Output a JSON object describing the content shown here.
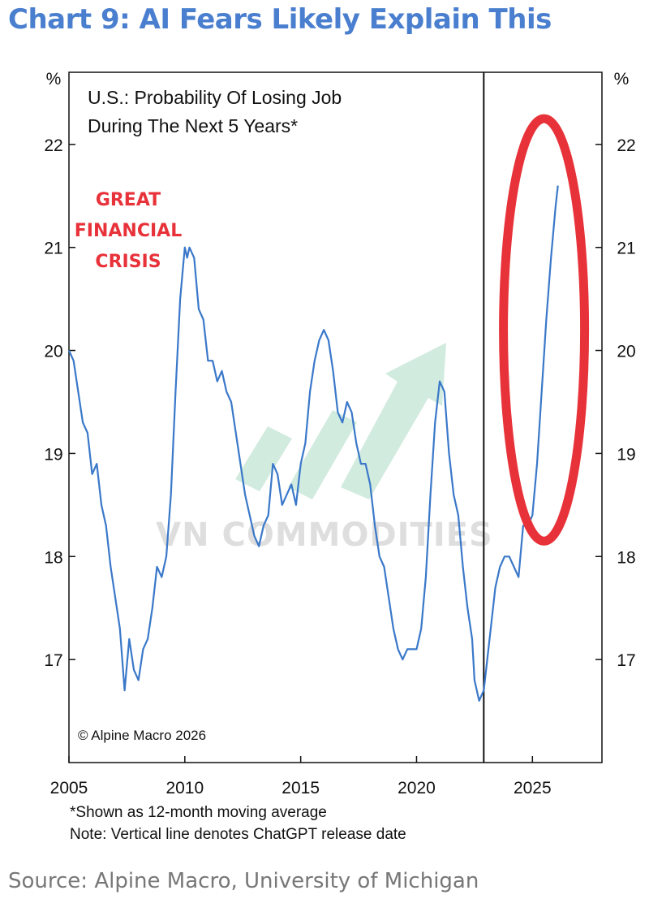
{
  "header": {
    "title": "Chart 9: AI Fears Likely Explain This"
  },
  "chart_data": {
    "type": "line",
    "title": "U.S.: Probability Of Losing Job",
    "subtitle": "During The Next 5 Years*",
    "ylabel_left": "%",
    "ylabel_right": "%",
    "xlim": [
      2005,
      2028
    ],
    "ylim": [
      16,
      22.7
    ],
    "x_ticks": [
      "2005",
      "2010",
      "2015",
      "2020",
      "2025"
    ],
    "y_ticks": [
      "17",
      "18",
      "19",
      "20",
      "21",
      "22"
    ],
    "vertical_line": {
      "x": 2022.9
    },
    "annotation": {
      "lines": [
        "GREAT",
        "FINANCIAL",
        "CRISIS"
      ],
      "color": "#e8323a"
    },
    "highlight_ellipse": {
      "cx": 2025.5,
      "cy": 20.2,
      "rx": 1.75,
      "ry": 2.05,
      "color": "#e8323a"
    },
    "copyright": "© Alpine Macro 2026",
    "watermark": "VN COMMODITIES",
    "series": [
      {
        "color": "#3a78c9",
        "points": [
          [
            2005.0,
            20.0
          ],
          [
            2005.2,
            19.9
          ],
          [
            2005.4,
            19.6
          ],
          [
            2005.6,
            19.3
          ],
          [
            2005.8,
            19.2
          ],
          [
            2006.0,
            18.8
          ],
          [
            2006.2,
            18.9
          ],
          [
            2006.4,
            18.5
          ],
          [
            2006.6,
            18.3
          ],
          [
            2006.8,
            17.9
          ],
          [
            2007.0,
            17.6
          ],
          [
            2007.2,
            17.3
          ],
          [
            2007.4,
            16.7
          ],
          [
            2007.6,
            17.2
          ],
          [
            2007.8,
            16.9
          ],
          [
            2008.0,
            16.8
          ],
          [
            2008.2,
            17.1
          ],
          [
            2008.4,
            17.2
          ],
          [
            2008.6,
            17.5
          ],
          [
            2008.8,
            17.9
          ],
          [
            2009.0,
            17.8
          ],
          [
            2009.2,
            18.0
          ],
          [
            2009.4,
            18.6
          ],
          [
            2009.6,
            19.6
          ],
          [
            2009.8,
            20.5
          ],
          [
            2010.0,
            21.0
          ],
          [
            2010.1,
            20.9
          ],
          [
            2010.2,
            21.0
          ],
          [
            2010.4,
            20.9
          ],
          [
            2010.6,
            20.4
          ],
          [
            2010.8,
            20.3
          ],
          [
            2011.0,
            19.9
          ],
          [
            2011.2,
            19.9
          ],
          [
            2011.4,
            19.7
          ],
          [
            2011.6,
            19.8
          ],
          [
            2011.8,
            19.6
          ],
          [
            2012.0,
            19.5
          ],
          [
            2012.2,
            19.2
          ],
          [
            2012.4,
            18.9
          ],
          [
            2012.6,
            18.6
          ],
          [
            2012.8,
            18.4
          ],
          [
            2013.0,
            18.2
          ],
          [
            2013.2,
            18.1
          ],
          [
            2013.4,
            18.3
          ],
          [
            2013.6,
            18.4
          ],
          [
            2013.8,
            18.9
          ],
          [
            2014.0,
            18.8
          ],
          [
            2014.2,
            18.5
          ],
          [
            2014.4,
            18.6
          ],
          [
            2014.6,
            18.7
          ],
          [
            2014.8,
            18.5
          ],
          [
            2015.0,
            18.9
          ],
          [
            2015.2,
            19.1
          ],
          [
            2015.4,
            19.6
          ],
          [
            2015.6,
            19.9
          ],
          [
            2015.8,
            20.1
          ],
          [
            2016.0,
            20.2
          ],
          [
            2016.2,
            20.1
          ],
          [
            2016.4,
            19.8
          ],
          [
            2016.6,
            19.4
          ],
          [
            2016.8,
            19.3
          ],
          [
            2017.0,
            19.5
          ],
          [
            2017.2,
            19.4
          ],
          [
            2017.4,
            19.1
          ],
          [
            2017.6,
            18.9
          ],
          [
            2017.8,
            18.9
          ],
          [
            2018.0,
            18.7
          ],
          [
            2018.2,
            18.3
          ],
          [
            2018.4,
            18.0
          ],
          [
            2018.6,
            17.9
          ],
          [
            2018.8,
            17.6
          ],
          [
            2019.0,
            17.3
          ],
          [
            2019.2,
            17.1
          ],
          [
            2019.4,
            17.0
          ],
          [
            2019.6,
            17.1
          ],
          [
            2019.8,
            17.1
          ],
          [
            2020.0,
            17.1
          ],
          [
            2020.2,
            17.3
          ],
          [
            2020.4,
            17.8
          ],
          [
            2020.6,
            18.6
          ],
          [
            2020.8,
            19.3
          ],
          [
            2021.0,
            19.7
          ],
          [
            2021.2,
            19.6
          ],
          [
            2021.4,
            19.0
          ],
          [
            2021.6,
            18.6
          ],
          [
            2021.8,
            18.4
          ],
          [
            2022.0,
            17.9
          ],
          [
            2022.2,
            17.5
          ],
          [
            2022.4,
            17.2
          ],
          [
            2022.5,
            16.8
          ],
          [
            2022.7,
            16.6
          ],
          [
            2022.9,
            16.7
          ],
          [
            2023.0,
            16.9
          ],
          [
            2023.2,
            17.3
          ],
          [
            2023.4,
            17.7
          ],
          [
            2023.6,
            17.9
          ],
          [
            2023.8,
            18.0
          ],
          [
            2024.0,
            18.0
          ],
          [
            2024.2,
            17.9
          ],
          [
            2024.4,
            17.8
          ],
          [
            2024.6,
            18.3
          ],
          [
            2024.8,
            18.3
          ],
          [
            2025.0,
            18.4
          ],
          [
            2025.2,
            18.9
          ],
          [
            2025.4,
            19.6
          ],
          [
            2025.6,
            20.3
          ],
          [
            2025.8,
            20.9
          ],
          [
            2026.0,
            21.4
          ],
          [
            2026.1,
            21.6
          ]
        ]
      }
    ]
  },
  "footnotes": {
    "line1": "*Shown as 12-month moving average",
    "line2": "Note: Vertical line denotes ChatGPT release date"
  },
  "source": "Source: Alpine Macro, University of Michigan"
}
